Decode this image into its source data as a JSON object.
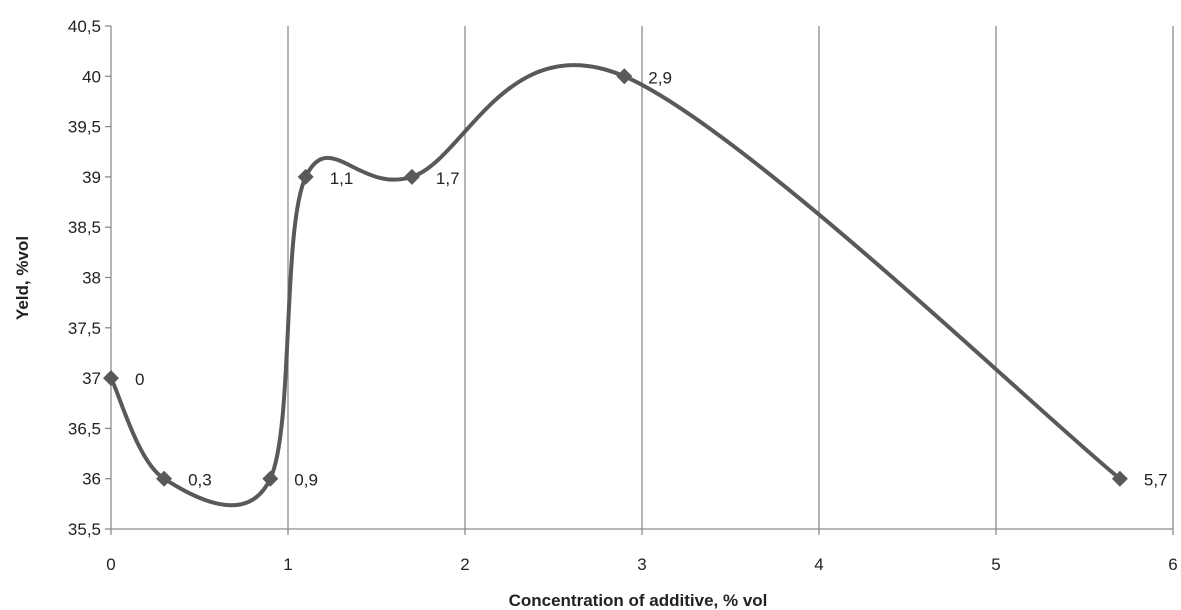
{
  "chart_data": {
    "type": "line",
    "smoothed": true,
    "title": "",
    "xlabel": "Concentration of additive, % vol",
    "ylabel": "Yeld, %vol",
    "xlim": [
      0,
      6
    ],
    "ylim": [
      35.5,
      40.5
    ],
    "x_ticks": [
      "0",
      "1",
      "2",
      "3",
      "4",
      "5",
      "6"
    ],
    "y_ticks": [
      "35,5",
      "36",
      "36,5",
      "37",
      "37,5",
      "38",
      "38,5",
      "39",
      "39,5",
      "40",
      "40,5"
    ],
    "grid": "vertical",
    "series": [
      {
        "x": [
          0,
          0.3,
          0.9,
          1.1,
          1.7,
          2.9,
          5.7
        ],
        "y": [
          37,
          36,
          36,
          39,
          39,
          40,
          36
        ],
        "labels": [
          "0",
          "0,3",
          "0,9",
          "1,1",
          "1,7",
          "2,9",
          "5,7"
        ],
        "color": "#595959",
        "marker": "diamond"
      }
    ]
  }
}
